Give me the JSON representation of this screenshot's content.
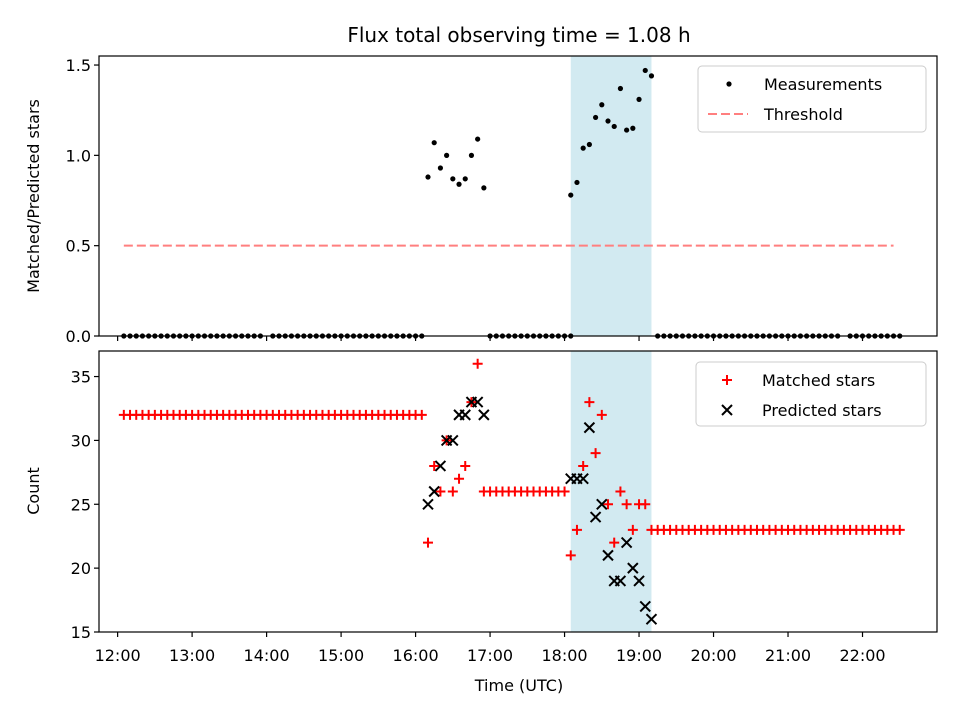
{
  "figure": {
    "title": "Flux total observing time = 1.08 h",
    "xlabel": "Time (UTC)"
  },
  "colors": {
    "measurement": "#000000",
    "threshold": "#ff7f7f",
    "matched": "#ff0000",
    "predicted": "#000000",
    "highlight": "#add8e6"
  },
  "chart_data": [
    {
      "type": "scatter",
      "ylabel": "Matched/Predicted stars",
      "xlim": [
        "11:45",
        "23:00"
      ],
      "ylim": [
        0,
        1.55
      ],
      "yticks": [
        "0.0",
        "0.5",
        "1.0",
        "1.5"
      ],
      "grid": false,
      "legend_position": "top-right",
      "legend": [
        "Measurements",
        "Threshold"
      ],
      "highlight_span": {
        "from": "18:05",
        "to": "19:10"
      },
      "threshold": {
        "from": "12:05",
        "to": "22:25",
        "value": 0.5
      },
      "series": [
        {
          "name": "Measurements",
          "marker": "dot",
          "points": [
            [
              "12:05",
              0
            ],
            [
              "12:10",
              0
            ],
            [
              "12:15",
              0
            ],
            [
              "12:20",
              0
            ],
            [
              "12:25",
              0
            ],
            [
              "12:30",
              0
            ],
            [
              "12:35",
              0
            ],
            [
              "12:40",
              0
            ],
            [
              "12:45",
              0
            ],
            [
              "12:50",
              0
            ],
            [
              "12:55",
              0
            ],
            [
              "13:00",
              0
            ],
            [
              "13:05",
              0
            ],
            [
              "13:10",
              0
            ],
            [
              "13:15",
              0
            ],
            [
              "13:20",
              0
            ],
            [
              "13:25",
              0
            ],
            [
              "13:30",
              0
            ],
            [
              "13:35",
              0
            ],
            [
              "13:40",
              0
            ],
            [
              "13:45",
              0
            ],
            [
              "13:50",
              0
            ],
            [
              "13:55",
              0
            ],
            [
              "14:05",
              0
            ],
            [
              "14:10",
              0
            ],
            [
              "14:15",
              0
            ],
            [
              "14:20",
              0
            ],
            [
              "14:25",
              0
            ],
            [
              "14:30",
              0
            ],
            [
              "14:35",
              0
            ],
            [
              "14:40",
              0
            ],
            [
              "14:45",
              0
            ],
            [
              "14:50",
              0
            ],
            [
              "14:55",
              0
            ],
            [
              "15:00",
              0
            ],
            [
              "15:05",
              0
            ],
            [
              "15:10",
              0
            ],
            [
              "15:15",
              0
            ],
            [
              "15:20",
              0
            ],
            [
              "15:25",
              0
            ],
            [
              "15:30",
              0
            ],
            [
              "15:35",
              0
            ],
            [
              "15:40",
              0
            ],
            [
              "15:45",
              0
            ],
            [
              "15:50",
              0
            ],
            [
              "15:55",
              0
            ],
            [
              "16:00",
              0
            ],
            [
              "16:05",
              0
            ],
            [
              "16:10",
              0.88
            ],
            [
              "16:15",
              1.07
            ],
            [
              "16:20",
              0.93
            ],
            [
              "16:25",
              1.0
            ],
            [
              "16:30",
              0.87
            ],
            [
              "16:35",
              0.84
            ],
            [
              "16:40",
              0.87
            ],
            [
              "16:45",
              1.0
            ],
            [
              "16:50",
              1.09
            ],
            [
              "16:55",
              0.82
            ],
            [
              "17:00",
              0
            ],
            [
              "17:05",
              0
            ],
            [
              "17:10",
              0
            ],
            [
              "17:15",
              0
            ],
            [
              "17:20",
              0
            ],
            [
              "17:25",
              0
            ],
            [
              "17:30",
              0
            ],
            [
              "17:35",
              0
            ],
            [
              "17:40",
              0
            ],
            [
              "17:45",
              0
            ],
            [
              "17:50",
              0
            ],
            [
              "17:55",
              0
            ],
            [
              "18:00",
              0
            ],
            [
              "18:05",
              0
            ],
            [
              "18:05",
              0.78
            ],
            [
              "18:10",
              0.85
            ],
            [
              "18:15",
              1.04
            ],
            [
              "18:20",
              1.06
            ],
            [
              "18:25",
              1.21
            ],
            [
              "18:30",
              1.28
            ],
            [
              "18:35",
              1.19
            ],
            [
              "18:40",
              1.16
            ],
            [
              "18:45",
              1.37
            ],
            [
              "18:50",
              1.14
            ],
            [
              "18:55",
              1.15
            ],
            [
              "19:00",
              1.31
            ],
            [
              "19:05",
              1.47
            ],
            [
              "19:10",
              1.44
            ],
            [
              "19:15",
              0
            ],
            [
              "19:20",
              0
            ],
            [
              "19:25",
              0
            ],
            [
              "19:30",
              0
            ],
            [
              "19:35",
              0
            ],
            [
              "19:40",
              0
            ],
            [
              "19:45",
              0
            ],
            [
              "19:50",
              0
            ],
            [
              "19:55",
              0
            ],
            [
              "20:00",
              0
            ],
            [
              "20:05",
              0
            ],
            [
              "20:10",
              0
            ],
            [
              "20:15",
              0
            ],
            [
              "20:20",
              0
            ],
            [
              "20:25",
              0
            ],
            [
              "20:30",
              0
            ],
            [
              "20:35",
              0
            ],
            [
              "20:40",
              0
            ],
            [
              "20:45",
              0
            ],
            [
              "20:50",
              0
            ],
            [
              "20:55",
              0
            ],
            [
              "21:00",
              0
            ],
            [
              "21:05",
              0
            ],
            [
              "21:10",
              0
            ],
            [
              "21:15",
              0
            ],
            [
              "21:20",
              0
            ],
            [
              "21:25",
              0
            ],
            [
              "21:30",
              0
            ],
            [
              "21:35",
              0
            ],
            [
              "21:40",
              0
            ],
            [
              "21:50",
              0
            ],
            [
              "21:55",
              0
            ],
            [
              "22:00",
              0
            ],
            [
              "22:05",
              0
            ],
            [
              "22:10",
              0
            ],
            [
              "22:15",
              0
            ],
            [
              "22:20",
              0
            ],
            [
              "22:25",
              0
            ],
            [
              "22:30",
              0
            ]
          ]
        }
      ]
    },
    {
      "type": "scatter",
      "ylabel": "Count",
      "xlim": [
        "11:45",
        "23:00"
      ],
      "ylim": [
        15,
        37
      ],
      "yticks": [
        "15",
        "20",
        "25",
        "30",
        "35"
      ],
      "xticks": [
        "12:00",
        "13:00",
        "14:00",
        "15:00",
        "16:00",
        "17:00",
        "18:00",
        "19:00",
        "20:00",
        "21:00",
        "22:00"
      ],
      "grid": false,
      "legend_position": "top-right",
      "legend": [
        "Matched stars",
        "Predicted stars"
      ],
      "highlight_span": {
        "from": "18:05",
        "to": "19:10"
      },
      "series": [
        {
          "name": "Matched stars",
          "marker": "plus",
          "runs": [
            {
              "from": "12:05",
              "to": "16:05",
              "step_minutes": 5,
              "value": 32
            },
            {
              "from": "16:55",
              "to": "18:00",
              "step_minutes": 5,
              "value": 26
            },
            {
              "from": "19:10",
              "to": "22:30",
              "step_minutes": 5,
              "value": 23
            }
          ],
          "points": [
            [
              "16:10",
              22
            ],
            [
              "16:15",
              28
            ],
            [
              "16:20",
              26
            ],
            [
              "16:25",
              30
            ],
            [
              "16:30",
              26
            ],
            [
              "16:35",
              27
            ],
            [
              "16:40",
              28
            ],
            [
              "16:45",
              33
            ],
            [
              "16:50",
              36
            ],
            [
              "18:05",
              21
            ],
            [
              "18:10",
              23
            ],
            [
              "18:15",
              28
            ],
            [
              "18:20",
              33
            ],
            [
              "18:25",
              29
            ],
            [
              "18:30",
              32
            ],
            [
              "18:35",
              25
            ],
            [
              "18:40",
              22
            ],
            [
              "18:45",
              26
            ],
            [
              "18:50",
              25
            ],
            [
              "18:55",
              23
            ],
            [
              "19:00",
              25
            ],
            [
              "19:05",
              25
            ]
          ]
        },
        {
          "name": "Predicted stars",
          "marker": "x",
          "points": [
            [
              "16:10",
              25
            ],
            [
              "16:15",
              26
            ],
            [
              "16:20",
              28
            ],
            [
              "16:25",
              30
            ],
            [
              "16:30",
              30
            ],
            [
              "16:35",
              32
            ],
            [
              "16:40",
              32
            ],
            [
              "16:45",
              33
            ],
            [
              "16:50",
              33
            ],
            [
              "16:55",
              32
            ],
            [
              "18:05",
              27
            ],
            [
              "18:10",
              27
            ],
            [
              "18:15",
              27
            ],
            [
              "18:20",
              31
            ],
            [
              "18:25",
              24
            ],
            [
              "18:30",
              25
            ],
            [
              "18:35",
              21
            ],
            [
              "18:40",
              19
            ],
            [
              "18:45",
              19
            ],
            [
              "18:50",
              22
            ],
            [
              "18:55",
              20
            ],
            [
              "19:00",
              19
            ],
            [
              "19:05",
              17
            ],
            [
              "19:10",
              16
            ]
          ]
        }
      ]
    }
  ]
}
